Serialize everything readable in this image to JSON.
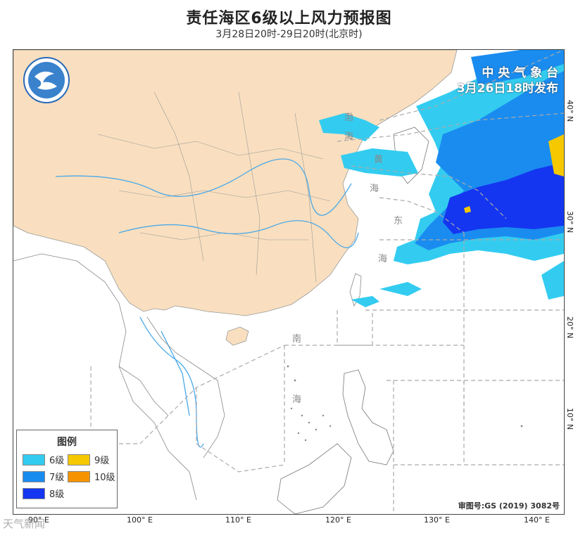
{
  "header": {
    "title": "责任海区6级以上风力预报图",
    "subtitle": "3月28日20时-29日20时(北京时)"
  },
  "agency": {
    "name": "中 央 气 象 台",
    "issued": "3月26日18时发布"
  },
  "legend": {
    "title": "图例",
    "items": [
      {
        "label": "6级",
        "color": "#33ccf0"
      },
      {
        "label": "7级",
        "color": "#1a8cf0"
      },
      {
        "label": "8级",
        "color": "#1436f0"
      },
      {
        "label": "9级",
        "color": "#f5c800"
      },
      {
        "label": "10级",
        "color": "#f59400"
      }
    ]
  },
  "sea_labels": [
    "渤",
    "海",
    "黄",
    "海",
    "东",
    "海",
    "南",
    "海"
  ],
  "longitude_labels": [
    "90° E",
    "100° E",
    "110° E",
    "120° E",
    "130° E",
    "140° E"
  ],
  "latitude_labels": [
    "40° N",
    "30° N",
    "20° N",
    "10° N"
  ],
  "map_number": "审图号:GS (2019) 3082号",
  "watermark": "天气新闻",
  "colors": {
    "land_china": "#f9dfbf",
    "land_other": "#ffffff",
    "river": "#4aa8e8",
    "border": "#777777",
    "grid_dash": "#aaaaaa"
  }
}
